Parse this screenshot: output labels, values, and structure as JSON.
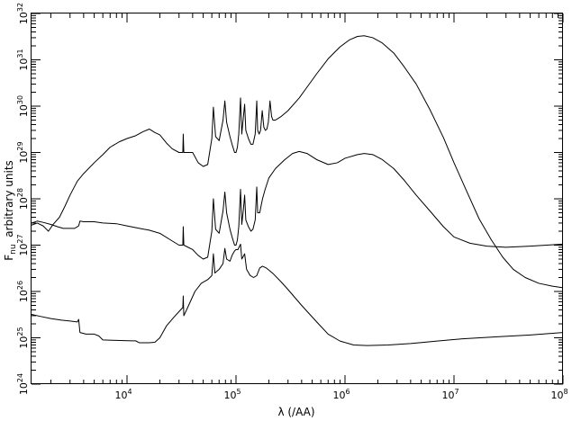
{
  "chart_data": {
    "type": "line",
    "title": "",
    "xlabel": "λ (/AA)",
    "ylabel": "F_nu arbitrary units",
    "ylabel_main": "F",
    "ylabel_sub": "nu",
    "ylabel_rest": "  arbitrary units",
    "x_scale": "log",
    "y_scale": "log",
    "xlim": [
      1330,
      100000000
    ],
    "ylim": [
      1e+24,
      1e+32
    ],
    "grid": false,
    "legend": "none",
    "x_ticks": [
      {
        "value": 10000,
        "base": "10",
        "exp": "4"
      },
      {
        "value": 100000,
        "base": "10",
        "exp": "5"
      },
      {
        "value": 1000000,
        "base": "10",
        "exp": "6"
      },
      {
        "value": 10000000,
        "base": "10",
        "exp": "7"
      },
      {
        "value": 100000000,
        "base": "10",
        "exp": "8"
      }
    ],
    "y_ticks": [
      {
        "value": 1e+24,
        "base": "10",
        "exp": "24"
      },
      {
        "value": 1e+25,
        "base": "10",
        "exp": "25"
      },
      {
        "value": 1e+26,
        "base": "10",
        "exp": "26"
      },
      {
        "value": 1e+27,
        "base": "10",
        "exp": "27"
      },
      {
        "value": 1e+28,
        "base": "10",
        "exp": "28"
      },
      {
        "value": 1e+29,
        "base": "10",
        "exp": "29"
      },
      {
        "value": 1e+30,
        "base": "10",
        "exp": "30"
      },
      {
        "value": 1e+31,
        "base": "10",
        "exp": "31"
      },
      {
        "value": 1e+32,
        "base": "10",
        "exp": "32"
      }
    ],
    "series": [
      {
        "points": [
          [
            1330,
            2.7e+27
          ],
          [
            1500,
            3e+27
          ],
          [
            1700,
            2.6e+27
          ],
          [
            1900,
            2e+27
          ],
          [
            2100,
            2.8e+27
          ],
          [
            2400,
            4e+27
          ],
          [
            2700,
            7e+27
          ],
          [
            3000,
            1.2e+28
          ],
          [
            3500,
            2.4e+28
          ],
          [
            4000,
            3.5e+28
          ],
          [
            5000,
            6e+28
          ],
          [
            6000,
            9e+28
          ],
          [
            7000,
            1.3e+29
          ],
          [
            8500,
            1.7e+29
          ],
          [
            10000,
            2e+29
          ],
          [
            12000,
            2.3e+29
          ],
          [
            14000,
            2.8e+29
          ],
          [
            16000,
            3.2e+29
          ],
          [
            18000,
            2.7e+29
          ],
          [
            20000,
            2.4e+29
          ],
          [
            23000,
            1.6e+29
          ],
          [
            26000,
            1.2e+29
          ],
          [
            30000,
            1e+29
          ],
          [
            32500,
            1e+29
          ],
          [
            32800,
            2.5e+29
          ],
          [
            33200,
            1e+29
          ],
          [
            35000,
            1e+29
          ],
          [
            40000,
            1e+29
          ],
          [
            45000,
            6e+28
          ],
          [
            50000,
            5e+28
          ],
          [
            55000,
            5.5e+28
          ],
          [
            60000,
            2e+29
          ],
          [
            62000,
            9.5e+29
          ],
          [
            65000,
            2.2e+29
          ],
          [
            70000,
            1.8e+29
          ],
          [
            76000,
            5e+29
          ],
          [
            79000,
            1.3e+30
          ],
          [
            82000,
            4.5e+29
          ],
          [
            88000,
            2.2e+29
          ],
          [
            92000,
            1.5e+29
          ],
          [
            97000,
            1e+29
          ],
          [
            100000,
            1e+29
          ],
          [
            103000,
            1.3e+29
          ],
          [
            106000,
            2.5e+29
          ],
          [
            110000,
            1.5e+30
          ],
          [
            113000,
            2.5e+29
          ],
          [
            117000,
            6e+29
          ],
          [
            120000,
            1.1e+30
          ],
          [
            123000,
            3e+29
          ],
          [
            130000,
            2e+29
          ],
          [
            137000,
            1.5e+29
          ],
          [
            143000,
            1.5e+29
          ],
          [
            150000,
            2.5e+29
          ],
          [
            155000,
            1.3e+30
          ],
          [
            158000,
            3e+29
          ],
          [
            163000,
            2.5e+29
          ],
          [
            168000,
            3e+29
          ],
          [
            174000,
            8e+29
          ],
          [
            180000,
            3.5e+29
          ],
          [
            186000,
            3e+29
          ],
          [
            192000,
            3.2e+29
          ],
          [
            198000,
            4.5e+29
          ],
          [
            205000,
            1.3e+30
          ],
          [
            212000,
            6e+29
          ],
          [
            218000,
            5e+29
          ],
          [
            230000,
            5e+29
          ],
          [
            260000,
            6e+29
          ],
          [
            300000,
            8e+29
          ],
          [
            380000,
            1.5e+30
          ],
          [
            450000,
            2.6e+30
          ],
          [
            550000,
            5e+30
          ],
          [
            700000,
            1.05e+31
          ],
          [
            900000,
            1.9e+31
          ],
          [
            1100000,
            2.7e+31
          ],
          [
            1300000,
            3.2e+31
          ],
          [
            1500000,
            3.3e+31
          ],
          [
            1800000,
            3e+31
          ],
          [
            2200000,
            2.3e+31
          ],
          [
            2800000,
            1.4e+31
          ],
          [
            3500000,
            7e+30
          ],
          [
            4500000,
            3e+30
          ],
          [
            6000000,
            8.5e+29
          ],
          [
            8000000,
            2.1e+29
          ],
          [
            10000000,
            6e+28
          ],
          [
            13000000,
            1.5e+28
          ],
          [
            17000000,
            3.7e+27
          ],
          [
            22000000,
            1.3e+27
          ],
          [
            28000000,
            5.5e+26
          ],
          [
            35000000,
            3e+26
          ],
          [
            45000000,
            2e+26
          ],
          [
            60000000,
            1.5e+26
          ],
          [
            80000000,
            1.3e+26
          ],
          [
            100000000,
            1.2e+26
          ]
        ]
      },
      {
        "points": [
          [
            1330,
            3e+27
          ],
          [
            1500,
            3.3e+27
          ],
          [
            1700,
            3.1e+27
          ],
          [
            2000,
            2.8e+27
          ],
          [
            2300,
            2.5e+27
          ],
          [
            2600,
            2.3e+27
          ],
          [
            3000,
            2.3e+27
          ],
          [
            3300,
            2.3e+27
          ],
          [
            3500,
            2.5e+27
          ],
          [
            3600,
            2.6e+27
          ],
          [
            3700,
            3.3e+27
          ],
          [
            4000,
            3.2e+27
          ],
          [
            5000,
            3.2e+27
          ],
          [
            6000,
            3e+27
          ],
          [
            8000,
            2.9e+27
          ],
          [
            10000,
            2.6e+27
          ],
          [
            13000,
            2.3e+27
          ],
          [
            16000,
            2.1e+27
          ],
          [
            20000,
            1.8e+27
          ],
          [
            25000,
            1.3e+27
          ],
          [
            30000,
            1e+27
          ],
          [
            32500,
            1e+27
          ],
          [
            32800,
            2.5e+27
          ],
          [
            33200,
            1e+27
          ],
          [
            40000,
            8e+26
          ],
          [
            45000,
            6e+26
          ],
          [
            50000,
            5e+26
          ],
          [
            55000,
            5.5e+26
          ],
          [
            60000,
            2e+27
          ],
          [
            62000,
            1e+28
          ],
          [
            65000,
            2.2e+27
          ],
          [
            70000,
            1.8e+27
          ],
          [
            76000,
            5.5e+27
          ],
          [
            79000,
            1.4e+28
          ],
          [
            82000,
            5e+27
          ],
          [
            88000,
            2.2e+27
          ],
          [
            92000,
            1.5e+27
          ],
          [
            97000,
            1e+27
          ],
          [
            100000,
            1e+27
          ],
          [
            103000,
            1.3e+27
          ],
          [
            106000,
            2.5e+27
          ],
          [
            110000,
            1.6e+28
          ],
          [
            113000,
            2.8e+27
          ],
          [
            117000,
            6e+27
          ],
          [
            120000,
            1.2e+28
          ],
          [
            123000,
            3.5e+27
          ],
          [
            130000,
            2.5e+27
          ],
          [
            137000,
            2e+27
          ],
          [
            143000,
            2.2e+27
          ],
          [
            150000,
            3.5e+27
          ],
          [
            155000,
            1.8e+28
          ],
          [
            158000,
            5e+27
          ],
          [
            165000,
            5e+27
          ],
          [
            175000,
            1e+28
          ],
          [
            185000,
            1.6e+28
          ],
          [
            200000,
            2.8e+28
          ],
          [
            230000,
            4.5e+28
          ],
          [
            280000,
            7e+28
          ],
          [
            330000,
            9.5e+28
          ],
          [
            380000,
            1.05e+29
          ],
          [
            450000,
            9.5e+28
          ],
          [
            550000,
            7e+28
          ],
          [
            700000,
            5.5e+28
          ],
          [
            850000,
            6e+28
          ],
          [
            1000000,
            7.5e+28
          ],
          [
            1300000,
            9e+28
          ],
          [
            1500000,
            9.5e+28
          ],
          [
            1800000,
            9e+28
          ],
          [
            2200000,
            7e+28
          ],
          [
            2800000,
            4.5e+28
          ],
          [
            3500000,
            2.5e+28
          ],
          [
            4500000,
            1.2e+28
          ],
          [
            6000000,
            5.5e+27
          ],
          [
            8000000,
            2.5e+27
          ],
          [
            10000000,
            1.5e+27
          ],
          [
            14000000,
            1.1e+27
          ],
          [
            20000000,
            9.5e+26
          ],
          [
            30000000,
            9e+26
          ],
          [
            50000000,
            9.5e+26
          ],
          [
            100000000,
            1.05e+27
          ]
        ]
      },
      {
        "points": [
          [
            1330,
            3.2e+25
          ],
          [
            1600,
            2.9e+25
          ],
          [
            2000,
            2.6e+25
          ],
          [
            2500,
            2.4e+25
          ],
          [
            3000,
            2.3e+25
          ],
          [
            3500,
            2.2e+25
          ],
          [
            3600,
            2.5e+25
          ],
          [
            3700,
            1.3e+25
          ],
          [
            4200,
            1.2e+25
          ],
          [
            5000,
            1.2e+25
          ],
          [
            5500,
            1.1e+25
          ],
          [
            6000,
            9e+24
          ],
          [
            8000,
            8.8e+24
          ],
          [
            11000,
            8.6e+24
          ],
          [
            12000,
            8.6e+24
          ],
          [
            13000,
            7.8e+24
          ],
          [
            16000,
            7.8e+24
          ],
          [
            18000,
            8e+24
          ],
          [
            20000,
            1e+25
          ],
          [
            23000,
            1.8e+25
          ],
          [
            27000,
            2.8e+25
          ],
          [
            31000,
            4e+25
          ],
          [
            32500,
            4.5e+25
          ],
          [
            32800,
            8e+25
          ],
          [
            33200,
            3e+25
          ],
          [
            36000,
            4.5e+25
          ],
          [
            42000,
            1e+26
          ],
          [
            48000,
            1.5e+26
          ],
          [
            55000,
            1.8e+26
          ],
          [
            60000,
            2.2e+26
          ],
          [
            62000,
            6.5e+26
          ],
          [
            64000,
            2.5e+26
          ],
          [
            70000,
            3e+26
          ],
          [
            76000,
            4e+26
          ],
          [
            79000,
            8.5e+26
          ],
          [
            82000,
            5e+26
          ],
          [
            88000,
            4.5e+26
          ],
          [
            92000,
            6e+26
          ],
          [
            97000,
            7.5e+26
          ],
          [
            100000,
            8e+26
          ],
          [
            104000,
            8e+26
          ],
          [
            110000,
            1.05e+27
          ],
          [
            113000,
            5e+26
          ],
          [
            120000,
            6.5e+26
          ],
          [
            125000,
            3e+26
          ],
          [
            135000,
            2.2e+26
          ],
          [
            145000,
            2e+26
          ],
          [
            155000,
            2.2e+26
          ],
          [
            165000,
            3.2e+26
          ],
          [
            175000,
            3.5e+26
          ],
          [
            190000,
            3.2e+26
          ],
          [
            220000,
            2.4e+26
          ],
          [
            260000,
            1.6e+26
          ],
          [
            300000,
            1.1e+26
          ],
          [
            400000,
            5e+25
          ],
          [
            550000,
            2.2e+25
          ],
          [
            700000,
            1.2e+25
          ],
          [
            900000,
            8.5e+24
          ],
          [
            1200000,
            7e+24
          ],
          [
            1600000,
            6.8e+24
          ],
          [
            2500000,
            7e+24
          ],
          [
            4000000,
            7.5e+24
          ],
          [
            7000000,
            8.5e+24
          ],
          [
            12000000,
            9.5e+24
          ],
          [
            25000000,
            1.05e+25
          ],
          [
            50000000,
            1.15e+25
          ],
          [
            100000000,
            1.3e+25
          ]
        ]
      }
    ]
  }
}
